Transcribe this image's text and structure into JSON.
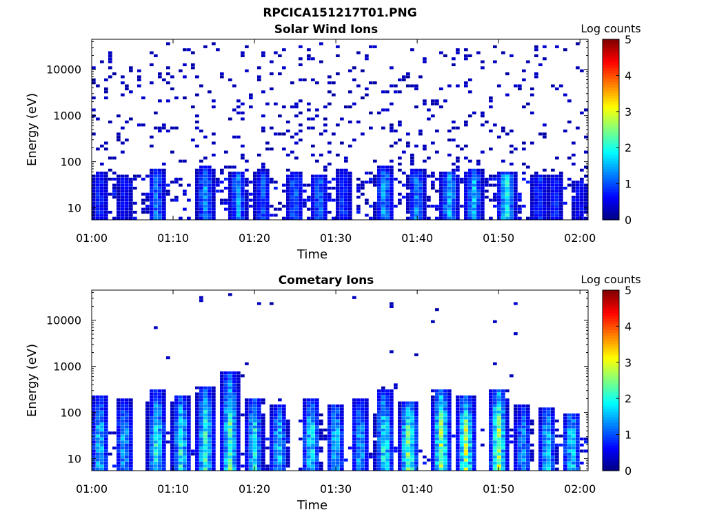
{
  "figure": {
    "title": "RPCICA151217T01.PNG"
  },
  "chart_data": [
    {
      "type": "heatmap",
      "title": "Solar Wind Ions",
      "xlabel": "Time",
      "ylabel": "Energy (eV)",
      "x_range": [
        "01:00",
        "02:01"
      ],
      "x_ticks": [
        "01:00",
        "01:10",
        "01:20",
        "01:30",
        "01:40",
        "01:50",
        "02:00"
      ],
      "y_scale": "log",
      "y_range": [
        5.5,
        45000
      ],
      "y_ticks": [
        10,
        100,
        1000,
        10000
      ],
      "y_tick_labels": [
        "10",
        "100",
        "1000",
        "10000"
      ],
      "colorbar": {
        "label": "Log counts",
        "range": [
          0,
          5
        ],
        "ticks": [
          "0",
          "1",
          "2",
          "3",
          "4",
          "5"
        ],
        "colormap": "jet"
      },
      "burst_minutes": [
        1,
        4,
        8,
        14,
        18,
        21,
        25,
        28,
        31,
        36,
        40,
        44,
        47,
        51,
        55,
        57,
        60
      ],
      "burst_peak_log_counts": [
        1.1,
        0.9,
        1.6,
        1.8,
        1.7,
        1.4,
        1.5,
        1.6,
        1.2,
        1.9,
        1.7,
        2.1,
        2.0,
        2.5,
        1.2,
        1.1,
        0.9
      ],
      "burst_top_energy_eV": [
        60,
        50,
        70,
        80,
        60,
        70,
        60,
        50,
        70,
        80,
        70,
        60,
        70,
        60,
        50,
        50,
        40
      ],
      "background": "sparse low counts (log counts ~0.3) between 10 and 30000 eV"
    },
    {
      "type": "heatmap",
      "title": "Cometary Ions",
      "xlabel": "Time",
      "ylabel": "Energy (eV)",
      "x_range": [
        "01:00",
        "02:01"
      ],
      "x_ticks": [
        "01:00",
        "01:10",
        "01:20",
        "01:30",
        "01:40",
        "01:50",
        "02:00"
      ],
      "y_scale": "log",
      "y_range": [
        5.5,
        45000
      ],
      "y_ticks": [
        10,
        100,
        1000,
        10000
      ],
      "y_tick_labels": [
        "10",
        "100",
        "1000",
        "10000"
      ],
      "colorbar": {
        "label": "Log counts",
        "range": [
          0,
          5
        ],
        "ticks": [
          "0",
          "1",
          "2",
          "3",
          "4",
          "5"
        ],
        "colormap": "jet"
      },
      "burst_minutes": [
        1,
        4,
        8,
        11,
        14,
        17,
        20,
        23,
        27,
        30,
        33,
        36,
        39,
        43,
        46,
        50,
        53,
        56,
        59
      ],
      "burst_peak_log_counts": [
        2.2,
        2.0,
        2.6,
        2.5,
        2.7,
        2.8,
        2.4,
        2.2,
        2.5,
        2.2,
        2.0,
        2.6,
        3.2,
        3.3,
        3.3,
        3.4,
        1.8,
        2.2,
        2.4
      ],
      "burst_top_energy_eV": [
        250,
        200,
        300,
        250,
        350,
        800,
        200,
        150,
        200,
        150,
        200,
        300,
        180,
        300,
        250,
        300,
        150,
        120,
        100
      ],
      "background": "few scattered low counts above 1000 eV"
    }
  ]
}
